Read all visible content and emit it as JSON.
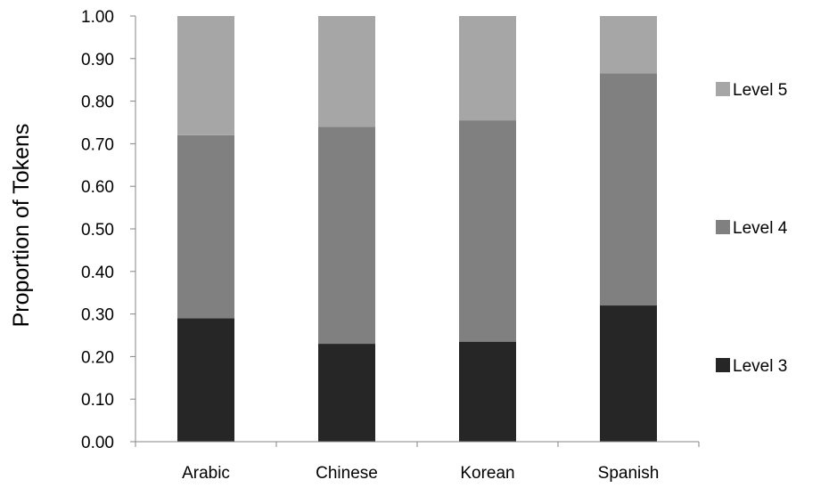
{
  "chart_data": {
    "type": "bar",
    "stacked": true,
    "categories": [
      "Arabic",
      "Chinese",
      "Korean",
      "Spanish"
    ],
    "series": [
      {
        "name": "Level 3",
        "values": [
          0.29,
          0.23,
          0.235,
          0.32
        ],
        "color": "#262626"
      },
      {
        "name": "Level 4",
        "values": [
          0.43,
          0.51,
          0.52,
          0.545
        ],
        "color": "#808080"
      },
      {
        "name": "Level 5",
        "values": [
          0.28,
          0.26,
          0.245,
          0.135
        ],
        "color": "#a6a6a6"
      }
    ],
    "title": "",
    "xlabel": "",
    "ylabel": "Proportion of Tokens",
    "ylim": [
      0,
      1
    ],
    "yticks": [
      "0.00",
      "0.10",
      "0.20",
      "0.30",
      "0.40",
      "0.50",
      "0.60",
      "0.70",
      "0.80",
      "0.90",
      "1.00"
    ],
    "grid": false,
    "legend_position": "right"
  }
}
